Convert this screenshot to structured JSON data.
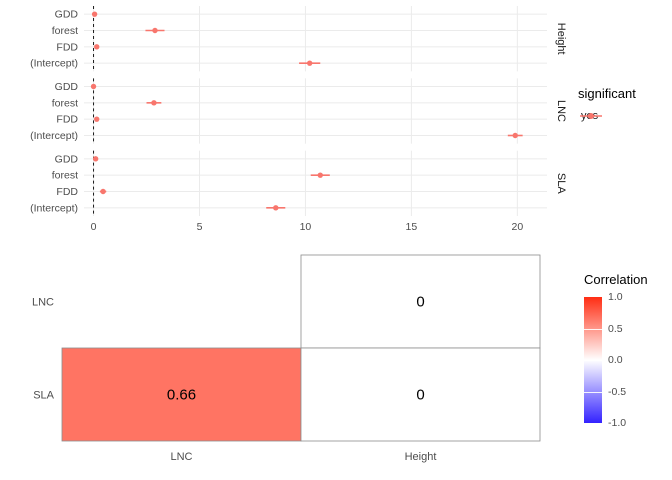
{
  "figure": {
    "background": "#ffffff"
  },
  "chart_data": [
    {
      "type": "scatter",
      "subtype": "coefficient-pointrange-plot",
      "title": "",
      "xlabel": "",
      "ylabel": "",
      "y_categories": [
        "GDD",
        "forest",
        "FDD",
        "(Intercept)"
      ],
      "x_ticks": [
        0,
        5,
        10,
        15,
        20
      ],
      "xlim": [
        -0.45,
        21.4
      ],
      "reference_line_x": 0,
      "point_color": "#F8766D",
      "grid": true,
      "facets": [
        {
          "label": "Height",
          "rows": [
            {
              "term": "GDD",
              "estimate": 0.05,
              "lo": -0.05,
              "hi": 0.15
            },
            {
              "term": "forest",
              "estimate": 2.9,
              "lo": 2.45,
              "hi": 3.35
            },
            {
              "term": "FDD",
              "estimate": 0.15,
              "lo": 0.05,
              "hi": 0.25
            },
            {
              "term": "(Intercept)",
              "estimate": 10.2,
              "lo": 9.7,
              "hi": 10.7
            }
          ]
        },
        {
          "label": "LNC",
          "rows": [
            {
              "term": "GDD",
              "estimate": 0.0,
              "lo": -0.1,
              "hi": 0.1
            },
            {
              "term": "forest",
              "estimate": 2.85,
              "lo": 2.5,
              "hi": 3.2
            },
            {
              "term": "FDD",
              "estimate": 0.15,
              "lo": 0.05,
              "hi": 0.25
            },
            {
              "term": "(Intercept)",
              "estimate": 19.9,
              "lo": 19.55,
              "hi": 20.25
            }
          ]
        },
        {
          "label": "SLA",
          "rows": [
            {
              "term": "GDD",
              "estimate": 0.1,
              "lo": 0.0,
              "hi": 0.2
            },
            {
              "term": "forest",
              "estimate": 10.7,
              "lo": 10.25,
              "hi": 11.15
            },
            {
              "term": "FDD",
              "estimate": 0.45,
              "lo": 0.3,
              "hi": 0.6
            },
            {
              "term": "(Intercept)",
              "estimate": 8.6,
              "lo": 8.15,
              "hi": 9.05
            }
          ]
        }
      ],
      "legend": {
        "position": "right",
        "title": "significant",
        "items": [
          {
            "label": "yes",
            "color": "#F8766D"
          }
        ]
      }
    },
    {
      "type": "heatmap",
      "title": "",
      "x_categories": [
        "LNC",
        "Height"
      ],
      "y_categories": [
        "LNC",
        "SLA"
      ],
      "cells": [
        {
          "row": "LNC",
          "col": "Height",
          "value": 0
        },
        {
          "row": "SLA",
          "col": "LNC",
          "value": 0.66
        },
        {
          "row": "SLA",
          "col": "Height",
          "value": 0
        }
      ],
      "cell_border_color": "#8c8c8c",
      "legend": {
        "position": "right",
        "title": "Correlation",
        "ticks": [
          "1.0",
          "0.5",
          "0.0",
          "-0.5",
          "-1.0"
        ],
        "limits": [
          1,
          -1
        ],
        "high_color": "#ff2d13",
        "mid_color": "#ffffff",
        "low_color": "#3322ff"
      }
    }
  ]
}
